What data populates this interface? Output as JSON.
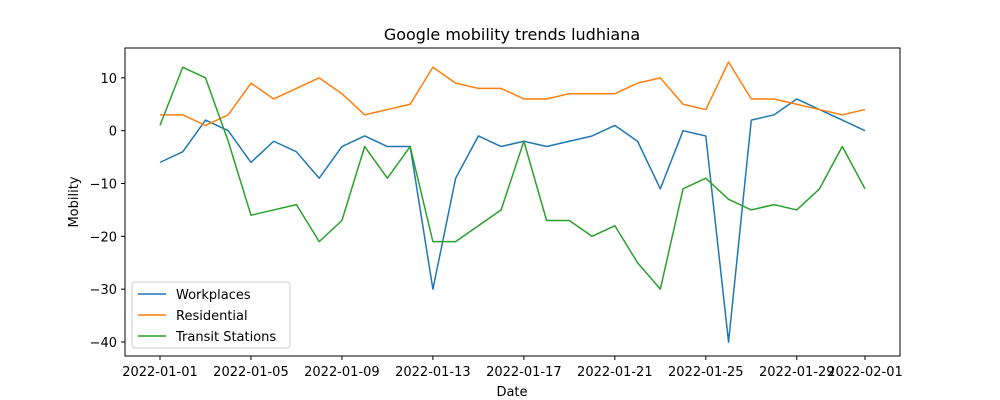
{
  "chart_data": {
    "type": "line",
    "title": "Google mobility trends ludhiana",
    "xlabel": "Date",
    "ylabel": "Mobility",
    "x": [
      "2022-01-01",
      "2022-01-02",
      "2022-01-03",
      "2022-01-04",
      "2022-01-05",
      "2022-01-06",
      "2022-01-07",
      "2022-01-08",
      "2022-01-09",
      "2022-01-10",
      "2022-01-11",
      "2022-01-12",
      "2022-01-13",
      "2022-01-14",
      "2022-01-15",
      "2022-01-16",
      "2022-01-17",
      "2022-01-18",
      "2022-01-19",
      "2022-01-20",
      "2022-01-21",
      "2022-01-22",
      "2022-01-23",
      "2022-01-24",
      "2022-01-25",
      "2022-01-26",
      "2022-01-27",
      "2022-01-28",
      "2022-01-29",
      "2022-01-30",
      "2022-01-31",
      "2022-02-01"
    ],
    "xticks": [
      "2022-01-01",
      "2022-01-05",
      "2022-01-09",
      "2022-01-13",
      "2022-01-17",
      "2022-01-21",
      "2022-01-25",
      "2022-01-29",
      "2022-02-01"
    ],
    "yticks": [
      10,
      0,
      -10,
      -20,
      -30,
      -40
    ],
    "ylim": [
      -42.65,
      15.65
    ],
    "grid": false,
    "legend_position": "lower-left",
    "series": [
      {
        "name": "Workplaces",
        "color": "#1f77b4",
        "values": [
          -6,
          -4,
          2,
          0,
          -6,
          -2,
          -4,
          -9,
          -3,
          -1,
          -3,
          -3,
          -30,
          -9,
          -1,
          -3,
          -2,
          -3,
          -2,
          -1,
          1,
          -2,
          -11,
          0,
          -1,
          -40,
          2,
          3,
          6,
          4,
          2,
          0
        ]
      },
      {
        "name": "Residential",
        "color": "#ff7f0e",
        "values": [
          3,
          3,
          1,
          3,
          9,
          6,
          8,
          10,
          7,
          3,
          4,
          5,
          12,
          9,
          8,
          8,
          6,
          6,
          7,
          7,
          7,
          9,
          10,
          5,
          4,
          13,
          6,
          6,
          5,
          4,
          3,
          4
        ]
      },
      {
        "name": "Transit Stations",
        "color": "#2ca02c",
        "values": [
          1,
          12,
          10,
          -2,
          -16,
          -15,
          -14,
          -21,
          -17,
          -3,
          -9,
          -3,
          -21,
          -21,
          -18,
          -15,
          -2,
          -17,
          -17,
          -20,
          -18,
          -25,
          -30,
          -11,
          -9,
          -13,
          -15,
          -14,
          -15,
          -11,
          -3,
          -11
        ]
      }
    ]
  }
}
